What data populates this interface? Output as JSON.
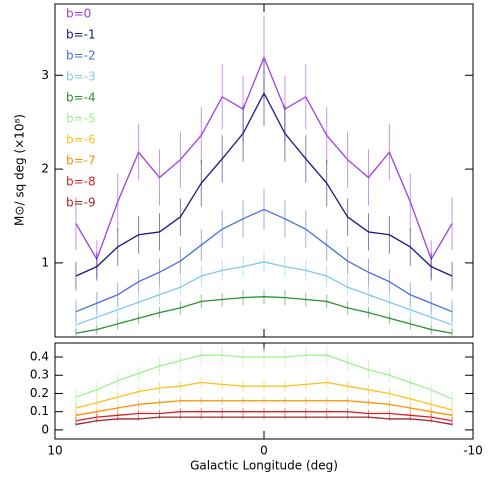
{
  "chart_data": [
    {
      "type": "line",
      "ylabel": "M⊙/ sq deg (×10⁸)",
      "x": [
        9,
        8,
        7,
        6,
        5,
        4,
        3,
        2,
        1,
        0,
        -1,
        -2,
        -3,
        -4,
        -5,
        -6,
        -7,
        -8,
        -9
      ],
      "xlim": [
        10,
        -10
      ],
      "xticks": [
        10,
        0,
        -10
      ],
      "ylim": [
        0.21,
        3.76
      ],
      "yticks": [
        1,
        2,
        3
      ],
      "series": [
        {
          "name": "b=0",
          "color": "#a040e0",
          "values": [
            1.42,
            1.04,
            1.65,
            2.18,
            1.91,
            2.1,
            2.36,
            2.77,
            2.64,
            3.19,
            2.64,
            2.77,
            2.36,
            2.1,
            1.91,
            2.18,
            1.65,
            1.04,
            1.42
          ],
          "errors": [
            0.28,
            0.2,
            0.3,
            0.3,
            0.3,
            0.3,
            0.3,
            0.35,
            0.35,
            0.45,
            0.35,
            0.35,
            0.3,
            0.3,
            0.3,
            0.3,
            0.3,
            0.2,
            0.28
          ]
        },
        {
          "name": "b=-1",
          "color": "#1a1a80",
          "values": [
            0.86,
            0.96,
            1.17,
            1.3,
            1.33,
            1.49,
            1.85,
            2.11,
            2.38,
            2.81,
            2.38,
            2.11,
            1.85,
            1.49,
            1.33,
            1.3,
            1.17,
            0.96,
            0.86
          ],
          "errors": [
            0.15,
            0.15,
            0.2,
            0.2,
            0.2,
            0.2,
            0.25,
            0.25,
            0.3,
            0.35,
            0.3,
            0.25,
            0.25,
            0.2,
            0.2,
            0.2,
            0.2,
            0.15,
            0.15
          ]
        },
        {
          "name": "b=-2",
          "color": "#4a6fd8",
          "values": [
            0.48,
            0.57,
            0.66,
            0.8,
            0.9,
            1.02,
            1.19,
            1.36,
            1.47,
            1.57,
            1.47,
            1.36,
            1.19,
            1.02,
            0.9,
            0.8,
            0.66,
            0.57,
            0.48
          ],
          "errors": [
            0.12,
            0.12,
            0.13,
            0.13,
            0.15,
            0.15,
            0.17,
            0.2,
            0.2,
            0.22,
            0.2,
            0.2,
            0.17,
            0.15,
            0.15,
            0.13,
            0.13,
            0.12,
            0.12
          ]
        },
        {
          "name": "b=-3",
          "color": "#80c8f0",
          "values": [
            0.34,
            0.42,
            0.5,
            0.58,
            0.66,
            0.74,
            0.86,
            0.92,
            0.96,
            1.01,
            0.96,
            0.92,
            0.86,
            0.74,
            0.66,
            0.58,
            0.5,
            0.42,
            0.34
          ],
          "errors": [
            0.08,
            0.08,
            0.09,
            0.09,
            0.1,
            0.1,
            0.11,
            0.11,
            0.12,
            0.12,
            0.12,
            0.11,
            0.11,
            0.1,
            0.1,
            0.09,
            0.09,
            0.08,
            0.08
          ]
        },
        {
          "name": "b=-4",
          "color": "#2a9030",
          "values": [
            0.25,
            0.29,
            0.35,
            0.41,
            0.47,
            0.52,
            0.59,
            0.61,
            0.63,
            0.64,
            0.63,
            0.61,
            0.59,
            0.52,
            0.47,
            0.41,
            0.35,
            0.29,
            0.25
          ],
          "errors": [
            0.05,
            0.05,
            0.06,
            0.06,
            0.06,
            0.07,
            0.07,
            0.07,
            0.08,
            0.08,
            0.08,
            0.07,
            0.07,
            0.07,
            0.06,
            0.06,
            0.06,
            0.05,
            0.05
          ]
        }
      ]
    },
    {
      "type": "line",
      "xlabel": "Galactic Longitude (deg)",
      "x": [
        9,
        8,
        7,
        6,
        5,
        4,
        3,
        2,
        1,
        0,
        -1,
        -2,
        -3,
        -4,
        -5,
        -6,
        -7,
        -8,
        -9
      ],
      "xlim": [
        10,
        -10
      ],
      "xticks": [
        10,
        0,
        -10
      ],
      "ylim": [
        -0.05,
        0.477
      ],
      "yticks": [
        0,
        0.1,
        0.2,
        0.3,
        0.4
      ],
      "series": [
        {
          "name": "b=-5",
          "color": "#a0f090",
          "values": [
            0.18,
            0.22,
            0.27,
            0.31,
            0.35,
            0.38,
            0.41,
            0.41,
            0.4,
            0.4,
            0.4,
            0.41,
            0.41,
            0.37,
            0.33,
            0.3,
            0.26,
            0.22,
            0.17
          ],
          "errors": [
            0.04,
            0.04,
            0.04,
            0.04,
            0.05,
            0.05,
            0.05,
            0.05,
            0.05,
            0.05,
            0.05,
            0.05,
            0.05,
            0.05,
            0.05,
            0.04,
            0.04,
            0.04,
            0.04
          ]
        },
        {
          "name": "b=-6",
          "color": "#ffc020",
          "values": [
            0.12,
            0.15,
            0.18,
            0.21,
            0.23,
            0.24,
            0.26,
            0.25,
            0.24,
            0.24,
            0.24,
            0.25,
            0.26,
            0.24,
            0.22,
            0.2,
            0.17,
            0.14,
            0.11
          ],
          "errors": [
            0.03,
            0.03,
            0.03,
            0.03,
            0.03,
            0.03,
            0.03,
            0.03,
            0.03,
            0.03,
            0.03,
            0.03,
            0.03,
            0.03,
            0.03,
            0.03,
            0.03,
            0.03,
            0.03
          ]
        },
        {
          "name": "b=-7",
          "color": "#ff9000",
          "values": [
            0.08,
            0.1,
            0.12,
            0.14,
            0.15,
            0.16,
            0.16,
            0.16,
            0.16,
            0.16,
            0.16,
            0.16,
            0.16,
            0.16,
            0.15,
            0.14,
            0.12,
            0.1,
            0.08
          ],
          "errors": [
            0.02,
            0.02,
            0.02,
            0.02,
            0.02,
            0.02,
            0.02,
            0.02,
            0.02,
            0.02,
            0.02,
            0.02,
            0.02,
            0.02,
            0.02,
            0.02,
            0.02,
            0.02,
            0.02
          ]
        },
        {
          "name": "b=-8",
          "color": "#e02020",
          "values": [
            0.05,
            0.07,
            0.08,
            0.09,
            0.09,
            0.1,
            0.1,
            0.1,
            0.1,
            0.1,
            0.1,
            0.1,
            0.1,
            0.1,
            0.09,
            0.09,
            0.08,
            0.07,
            0.05
          ],
          "errors": [
            0.02,
            0.02,
            0.02,
            0.02,
            0.02,
            0.02,
            0.02,
            0.02,
            0.02,
            0.02,
            0.02,
            0.02,
            0.02,
            0.02,
            0.02,
            0.02,
            0.02,
            0.02,
            0.02
          ]
        },
        {
          "name": "b=-9",
          "color": "#a02828",
          "values": [
            0.03,
            0.05,
            0.06,
            0.06,
            0.07,
            0.07,
            0.07,
            0.07,
            0.07,
            0.07,
            0.07,
            0.07,
            0.07,
            0.07,
            0.07,
            0.06,
            0.06,
            0.05,
            0.03
          ],
          "errors": [
            0.01,
            0.01,
            0.01,
            0.01,
            0.01,
            0.01,
            0.01,
            0.01,
            0.01,
            0.01,
            0.01,
            0.01,
            0.01,
            0.01,
            0.01,
            0.01,
            0.01,
            0.01,
            0.01
          ]
        }
      ]
    }
  ]
}
